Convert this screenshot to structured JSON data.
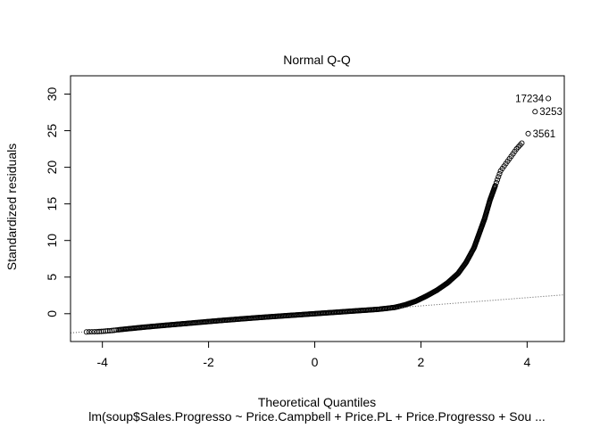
{
  "chart_data": {
    "type": "scatter",
    "title": "Normal Q-Q",
    "xlabel": "Theoretical Quantiles",
    "ylabel": "Standardized residuals",
    "subtitle": "lm(soup$Sales.Progresso ~ Price.Campbell + Price.PL + Price.Progresso + Sou ...",
    "xlim": [
      -4.6,
      4.7
    ],
    "ylim": [
      -3.8,
      32.5
    ],
    "x_ticks": [
      -4,
      -2,
      0,
      2,
      4
    ],
    "y_ticks": [
      0,
      5,
      10,
      15,
      20,
      25,
      30
    ],
    "grid": false,
    "reference_line": {
      "style": "dotted",
      "intercept": -0.05,
      "slope": 0.56
    },
    "series": [
      {
        "marker": "open-circle",
        "points": [
          [
            -4.3,
            -2.5
          ],
          [
            -4.1,
            -2.45
          ],
          [
            -3.98,
            -2.4
          ],
          [
            -3.9,
            -2.35
          ],
          [
            -3.82,
            -2.3
          ],
          [
            -3.7,
            -2.2
          ],
          [
            -3.5,
            -2.05
          ],
          [
            -3.3,
            -1.9
          ],
          [
            -3.0,
            -1.7
          ],
          [
            -2.6,
            -1.45
          ],
          [
            -2.2,
            -1.2
          ],
          [
            -1.8,
            -0.95
          ],
          [
            -1.4,
            -0.72
          ],
          [
            -1.0,
            -0.5
          ],
          [
            -0.6,
            -0.3
          ],
          [
            -0.2,
            -0.1
          ],
          [
            0.0,
            0.0
          ],
          [
            0.3,
            0.15
          ],
          [
            0.6,
            0.3
          ],
          [
            0.9,
            0.45
          ],
          [
            1.2,
            0.6
          ],
          [
            1.5,
            0.85
          ],
          [
            1.7,
            1.2
          ],
          [
            1.9,
            1.7
          ],
          [
            2.1,
            2.4
          ],
          [
            2.3,
            3.2
          ],
          [
            2.5,
            4.2
          ],
          [
            2.7,
            5.5
          ],
          [
            2.85,
            7.0
          ],
          [
            3.0,
            9.0
          ],
          [
            3.1,
            11.0
          ],
          [
            3.2,
            13.0
          ],
          [
            3.3,
            15.5
          ],
          [
            3.4,
            17.5
          ],
          [
            3.5,
            19.5
          ],
          [
            3.6,
            20.5
          ],
          [
            3.7,
            21.5
          ],
          [
            3.8,
            22.5
          ],
          [
            3.9,
            23.3
          ]
        ]
      }
    ],
    "labeled_points": [
      {
        "label": "17234",
        "x": 4.4,
        "y": 29.4,
        "side": "left"
      },
      {
        "label": "3253",
        "x": 4.15,
        "y": 27.6,
        "side": "right"
      },
      {
        "label": "3561",
        "x": 4.02,
        "y": 24.6,
        "side": "right"
      }
    ]
  }
}
